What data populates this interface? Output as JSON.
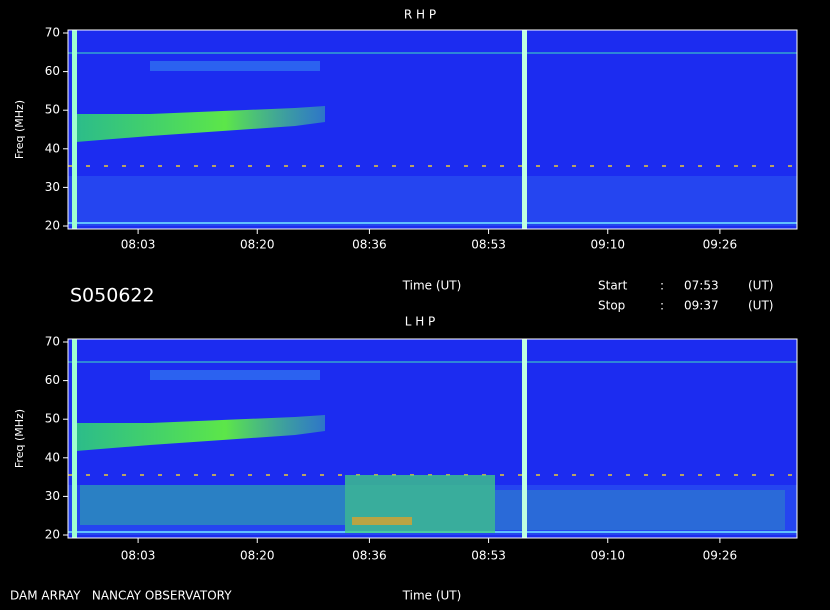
{
  "chart_data": [
    {
      "type": "spectrogram",
      "title": "R H P",
      "y_label": "Freq (MHz)",
      "x_label": "Time (UT)",
      "ylim": [
        20,
        70
      ],
      "yticks": [
        20,
        30,
        40,
        50,
        60,
        70
      ],
      "xlim": [
        473,
        577
      ],
      "xticks": [
        {
          "value": 483,
          "label": "08:03"
        },
        {
          "value": 500,
          "label": "08:20"
        },
        {
          "value": 516,
          "label": "08:36"
        },
        {
          "value": 533,
          "label": "08:53"
        },
        {
          "value": 550,
          "label": "09:10"
        },
        {
          "value": 566,
          "label": "09:26"
        }
      ]
    },
    {
      "type": "spectrogram",
      "title": "L H P",
      "y_label": "Freq (MHz)",
      "x_label": "Time (UT)",
      "ylim": [
        20,
        70
      ],
      "yticks": [
        20,
        30,
        40,
        50,
        60,
        70
      ],
      "xlim": [
        473,
        577
      ],
      "xticks": [
        {
          "value": 483,
          "label": "08:03"
        },
        {
          "value": 500,
          "label": "08:20"
        },
        {
          "value": 516,
          "label": "08:36"
        },
        {
          "value": 533,
          "label": "08:53"
        },
        {
          "value": 550,
          "label": "09:10"
        },
        {
          "value": 566,
          "label": "09:26"
        }
      ]
    }
  ],
  "observation": {
    "id": "S050622",
    "start_label": "Start",
    "start_sep": ":",
    "start": "07:53",
    "start_unit": "(UT)",
    "stop_label": "Stop",
    "stop_sep": ":",
    "stop": "09:37",
    "stop_unit": "(UT)",
    "footer": "DAM ARRAY   NANCAY OBSERVATORY"
  }
}
